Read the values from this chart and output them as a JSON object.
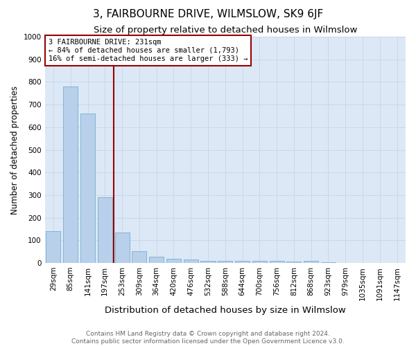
{
  "title": "3, FAIRBOURNE DRIVE, WILMSLOW, SK9 6JF",
  "subtitle": "Size of property relative to detached houses in Wilmslow",
  "xlabel": "Distribution of detached houses by size in Wilmslow",
  "ylabel": "Number of detached properties",
  "footer_line1": "Contains HM Land Registry data © Crown copyright and database right 2024.",
  "footer_line2": "Contains public sector information licensed under the Open Government Licence v3.0.",
  "bin_labels": [
    "29sqm",
    "85sqm",
    "141sqm",
    "197sqm",
    "253sqm",
    "309sqm",
    "364sqm",
    "420sqm",
    "476sqm",
    "532sqm",
    "588sqm",
    "644sqm",
    "700sqm",
    "756sqm",
    "812sqm",
    "868sqm",
    "923sqm",
    "979sqm",
    "1035sqm",
    "1091sqm",
    "1147sqm"
  ],
  "bar_values": [
    140,
    780,
    660,
    290,
    135,
    52,
    28,
    18,
    15,
    8,
    8,
    10,
    8,
    8,
    7,
    8,
    2,
    0,
    0,
    0,
    0
  ],
  "property_line_bin_index": 3.5,
  "bar_color": "#b8d0ea",
  "bar_edge_color": "#7aadd4",
  "vline_color": "#990000",
  "annotation_box_color": "#990000",
  "annotation_line1": "3 FAIRBOURNE DRIVE: 231sqm",
  "annotation_line2": "← 84% of detached houses are smaller (1,793)",
  "annotation_line3": "16% of semi-detached houses are larger (333) →",
  "ylim": [
    0,
    1000
  ],
  "yticks": [
    0,
    100,
    200,
    300,
    400,
    500,
    600,
    700,
    800,
    900,
    1000
  ],
  "grid_color": "#c8d8ea",
  "background_color": "#dce8f5",
  "title_fontsize": 11,
  "subtitle_fontsize": 9.5,
  "xlabel_fontsize": 9.5,
  "ylabel_fontsize": 8.5,
  "tick_fontsize": 7.5,
  "annotation_fontsize": 7.5,
  "footer_fontsize": 6.5
}
